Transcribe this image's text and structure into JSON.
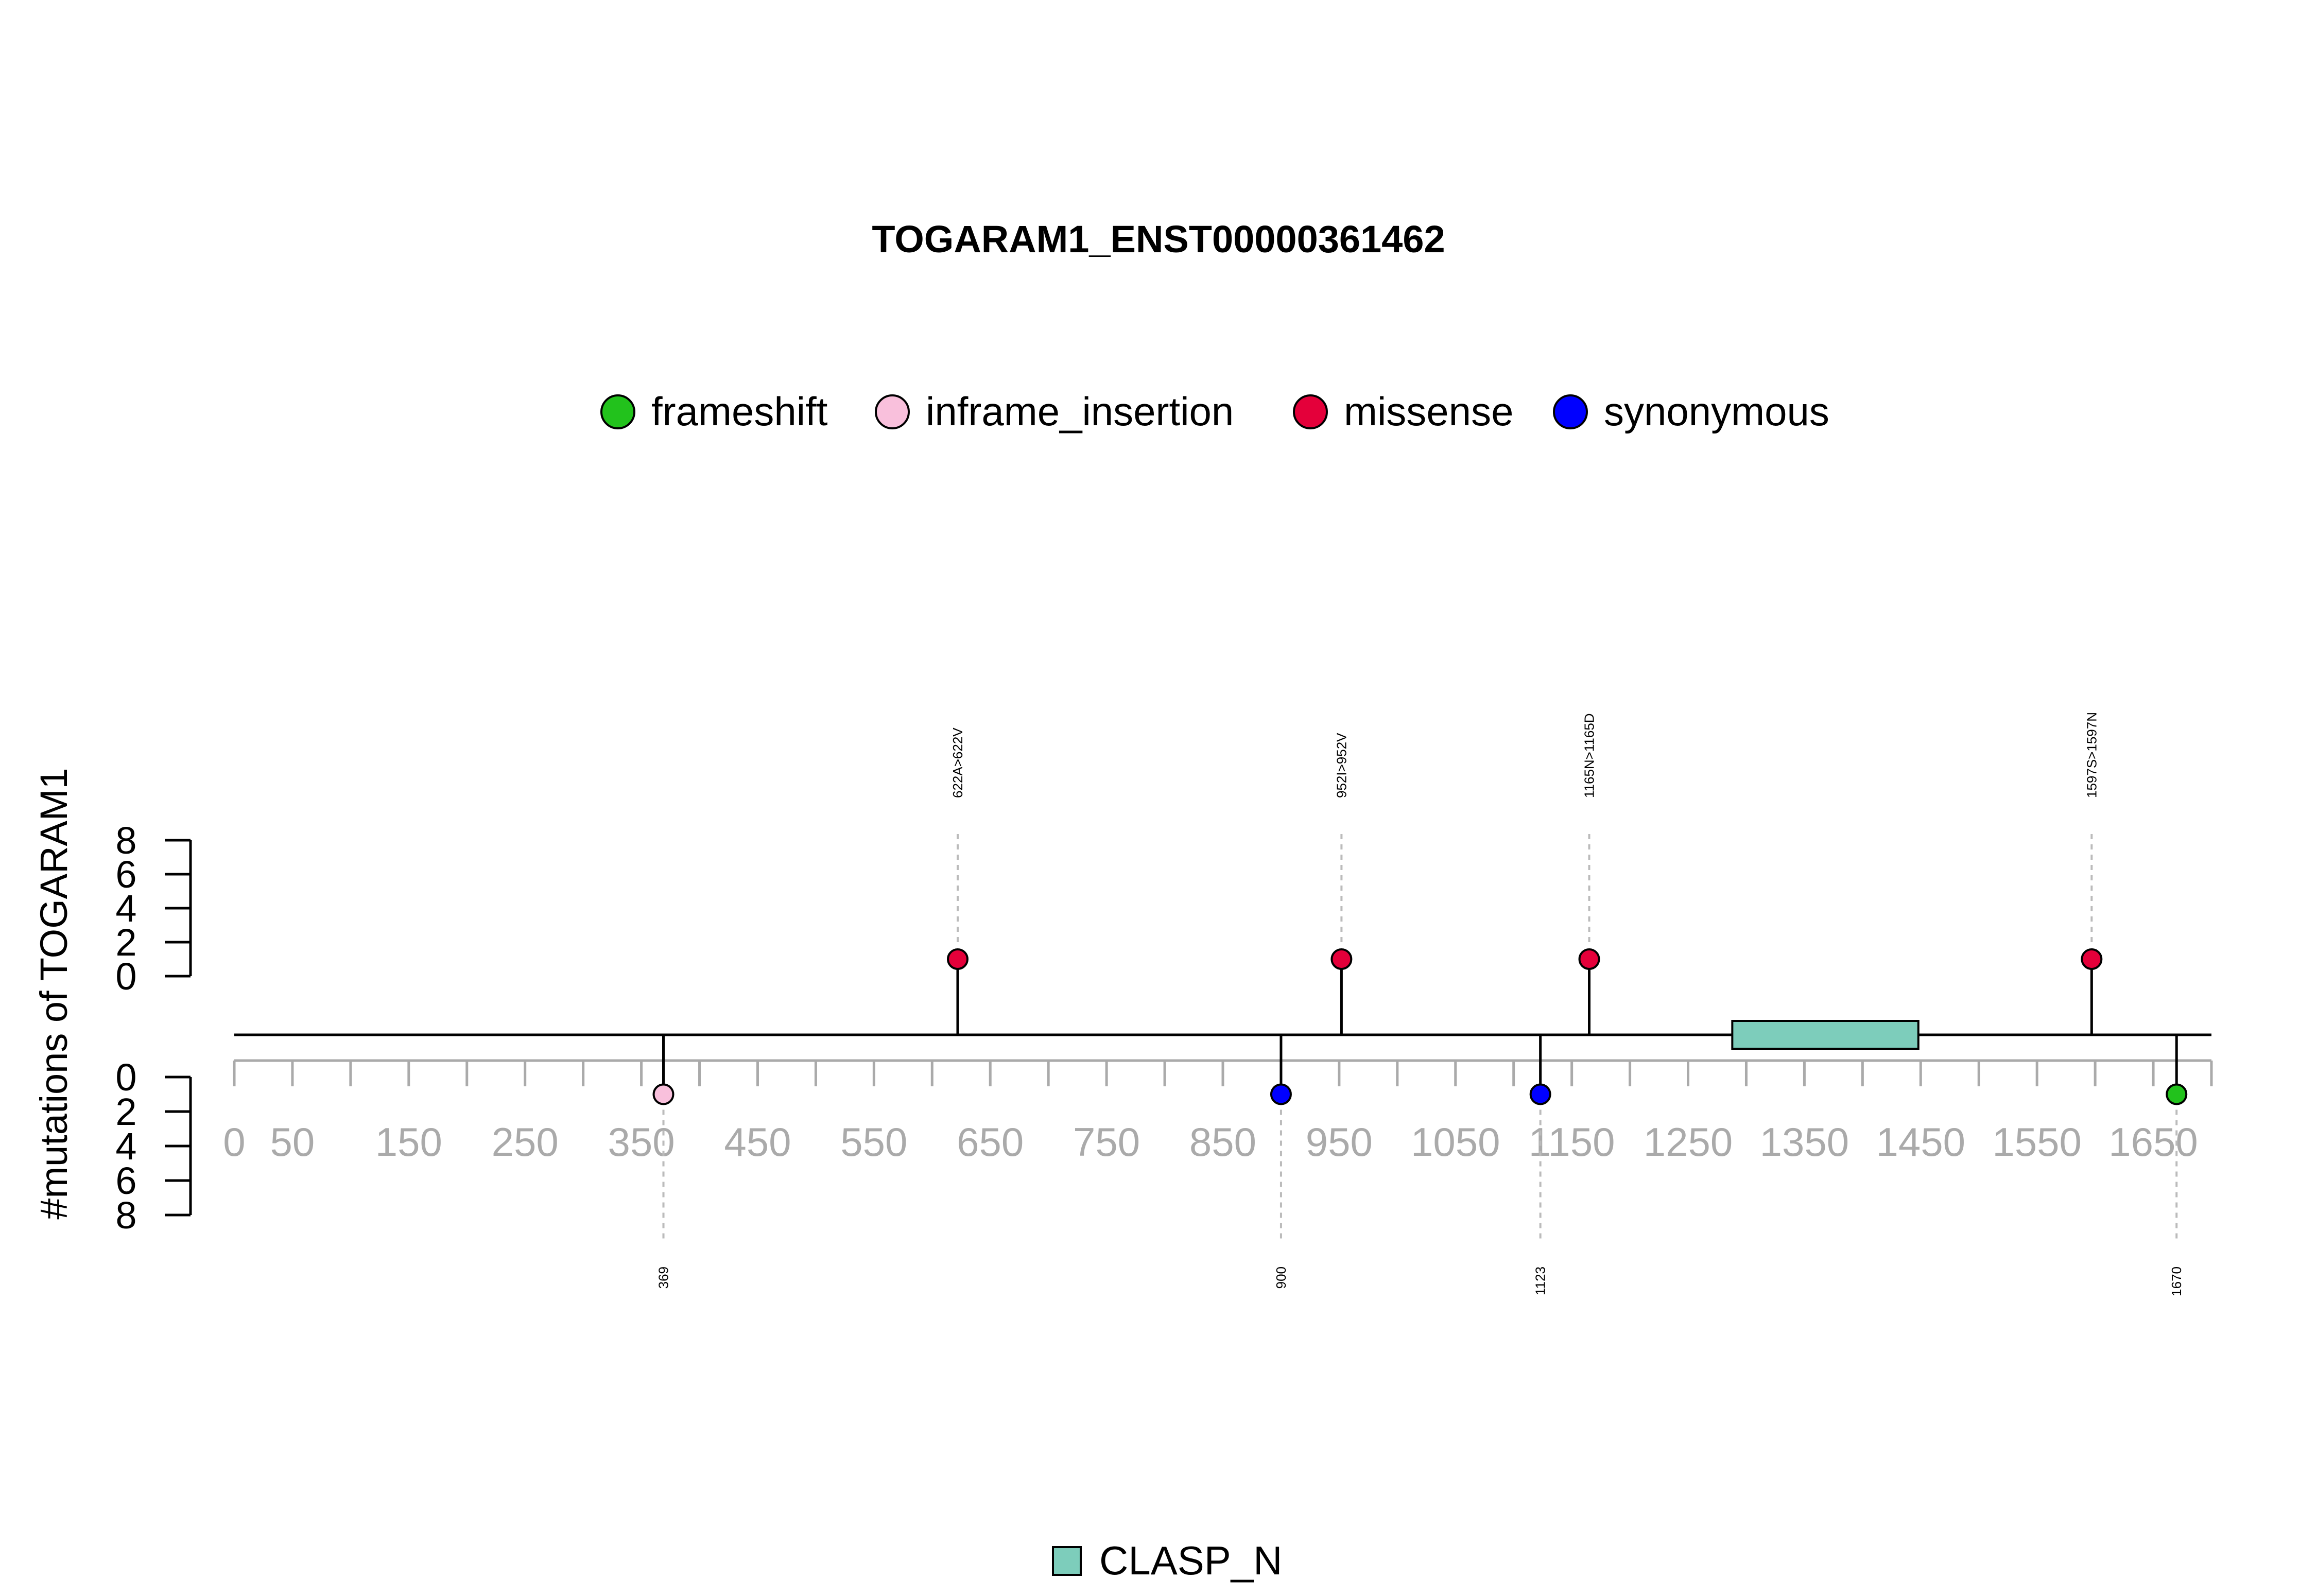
{
  "chart_data": {
    "type": "lollipop",
    "title": "TOGARAM1_ENST00000361462",
    "ylabel": "#mutations of TOGARAM1",
    "ylim": [
      0,
      8
    ],
    "y_ticks": [
      "0",
      "2",
      "4",
      "6",
      "8"
    ],
    "xlim": [
      0,
      1700
    ],
    "x_ticks": [
      "0",
      "50",
      "150",
      "250",
      "350",
      "450",
      "550",
      "650",
      "750",
      "850",
      "950",
      "1050",
      "1150",
      "1250",
      "1350",
      "1450",
      "1550",
      "1650"
    ],
    "legend": [
      {
        "label": "frameshift",
        "color": "#22c21c"
      },
      {
        "label": "inframe_insertion",
        "color": "#f9c0dc"
      },
      {
        "label": "missense",
        "color": "#e4003a"
      },
      {
        "label": "synonymous",
        "color": "#0000ff"
      }
    ],
    "mutations_top": [
      {
        "position": 622,
        "count": 1,
        "type": "missense",
        "label": "622A>622V"
      },
      {
        "position": 952,
        "count": 1,
        "type": "missense",
        "label": "952I>952V"
      },
      {
        "position": 1165,
        "count": 1,
        "type": "missense",
        "label": "1165N>1165D"
      },
      {
        "position": 1597,
        "count": 1,
        "type": "missense",
        "label": "1597S>1597N"
      }
    ],
    "mutations_bottom": [
      {
        "position": 369,
        "count": 1,
        "type": "inframe_insertion",
        "label": "369"
      },
      {
        "position": 900,
        "count": 1,
        "type": "synonymous",
        "label": "900"
      },
      {
        "position": 1123,
        "count": 1,
        "type": "synonymous",
        "label": "1123"
      },
      {
        "position": 1670,
        "count": 1,
        "type": "frameshift",
        "label": "1670"
      }
    ],
    "domains": [
      {
        "name": "CLASP_N",
        "start": 1288,
        "end": 1448,
        "color": "#7dcdbb"
      }
    ]
  }
}
